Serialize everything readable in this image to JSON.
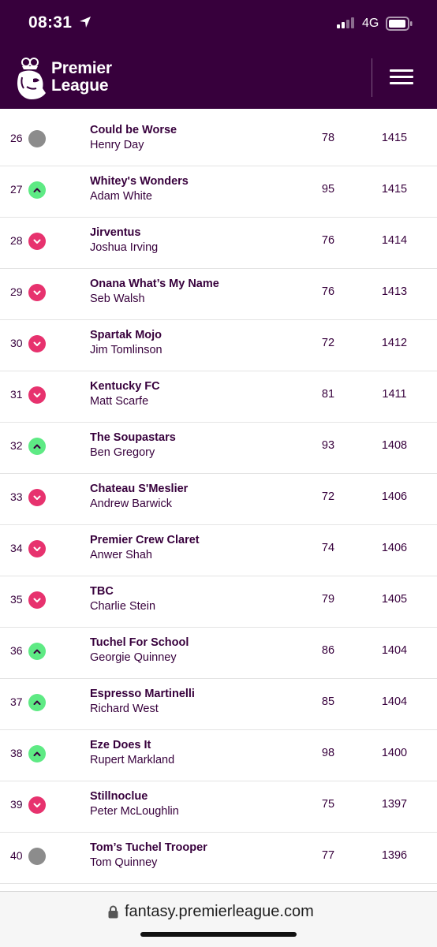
{
  "status": {
    "time": "08:31",
    "network": "4G"
  },
  "brand": {
    "line1": "Premier",
    "line2": "League"
  },
  "rows": [
    {
      "rank": "26",
      "movement": "same",
      "team": "Could be Worse",
      "manager": "Henry Day",
      "gw": "78",
      "total": "1415"
    },
    {
      "rank": "27",
      "movement": "up",
      "team": "Whitey's Wonders",
      "manager": "Adam White",
      "gw": "95",
      "total": "1415"
    },
    {
      "rank": "28",
      "movement": "down",
      "team": "Jirventus",
      "manager": "Joshua Irving",
      "gw": "76",
      "total": "1414"
    },
    {
      "rank": "29",
      "movement": "down",
      "team": "Onana What’s My Name",
      "manager": "Seb Walsh",
      "gw": "76",
      "total": "1413"
    },
    {
      "rank": "30",
      "movement": "down",
      "team": "Spartak Mojo",
      "manager": "Jim Tomlinson",
      "gw": "72",
      "total": "1412"
    },
    {
      "rank": "31",
      "movement": "down",
      "team": "Kentucky FC",
      "manager": "Matt Scarfe",
      "gw": "81",
      "total": "1411"
    },
    {
      "rank": "32",
      "movement": "up",
      "team": "The Soupastars",
      "manager": "Ben Gregory",
      "gw": "93",
      "total": "1408"
    },
    {
      "rank": "33",
      "movement": "down",
      "team": "Chateau S'Meslier",
      "manager": "Andrew Barwick",
      "gw": "72",
      "total": "1406"
    },
    {
      "rank": "34",
      "movement": "down",
      "team": "Premier Crew Claret",
      "manager": "Anwer Shah",
      "gw": "74",
      "total": "1406"
    },
    {
      "rank": "35",
      "movement": "down",
      "team": "TBC",
      "manager": "Charlie Stein",
      "gw": "79",
      "total": "1405"
    },
    {
      "rank": "36",
      "movement": "up",
      "team": "Tuchel For School",
      "manager": "Georgie Quinney",
      "gw": "86",
      "total": "1404"
    },
    {
      "rank": "37",
      "movement": "up",
      "team": "Espresso Martinelli",
      "manager": "Richard West",
      "gw": "85",
      "total": "1404"
    },
    {
      "rank": "38",
      "movement": "up",
      "team": "Eze Does It",
      "manager": "Rupert Markland",
      "gw": "98",
      "total": "1400"
    },
    {
      "rank": "39",
      "movement": "down",
      "team": "Stillnoclue",
      "manager": "Peter McLoughlin",
      "gw": "75",
      "total": "1397"
    },
    {
      "rank": "40",
      "movement": "same",
      "team": "Tom’s Tuchel Trooper",
      "manager": "Tom Quinney",
      "gw": "77",
      "total": "1396"
    }
  ],
  "browser": {
    "url": "fantasy.premierleague.com"
  },
  "colors": {
    "brand": "#37003c",
    "up": "#5eea84",
    "down": "#e7326e",
    "same": "#8c8c8c"
  }
}
